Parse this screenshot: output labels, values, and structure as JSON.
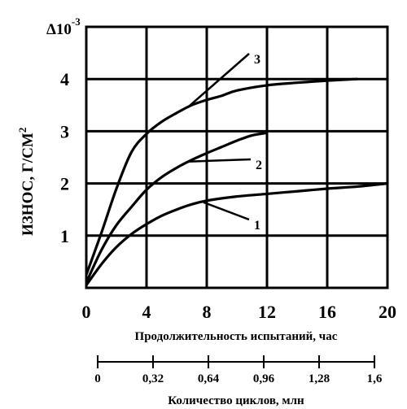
{
  "chart_data": {
    "type": "line",
    "xlabel": "Продолжительность испытаний, час",
    "ylabel": "ИЗНОС, Г/СМ",
    "ylabel_superscript": "2",
    "y_multiplier_text": "Δ10",
    "y_multiplier_exp": "-3",
    "xlim": [
      0,
      20
    ],
    "ylim": [
      0,
      5
    ],
    "x_ticks": [
      "0",
      "4",
      "8",
      "12",
      "16",
      "20"
    ],
    "y_ticks": [
      "1",
      "2",
      "3",
      "4"
    ],
    "grid": true,
    "secondary_axis": {
      "label": "Количество циклов, млн",
      "ticks": [
        "0",
        "0,32",
        "0,64",
        "0,96",
        "1,28",
        "1,6"
      ]
    },
    "series": [
      {
        "name": "1",
        "x": [
          0,
          1,
          2,
          3,
          4,
          5,
          6,
          7,
          8,
          10,
          12,
          14,
          16,
          18,
          20
        ],
        "y": [
          0.05,
          0.45,
          0.78,
          1.03,
          1.22,
          1.38,
          1.5,
          1.6,
          1.67,
          1.75,
          1.8,
          1.85,
          1.9,
          1.94,
          2.0
        ]
      },
      {
        "name": "2",
        "x": [
          0,
          1,
          2,
          3,
          4,
          5,
          6,
          7,
          8,
          9,
          10,
          11,
          12
        ],
        "y": [
          0.1,
          0.72,
          1.2,
          1.55,
          1.88,
          2.12,
          2.3,
          2.45,
          2.58,
          2.7,
          2.82,
          2.92,
          2.97
        ]
      },
      {
        "name": "3",
        "x": [
          0,
          1,
          2,
          3,
          4,
          5,
          6,
          7,
          8,
          9,
          10,
          12,
          14,
          16,
          18
        ],
        "y": [
          0.25,
          1.05,
          1.9,
          2.6,
          2.95,
          3.18,
          3.35,
          3.5,
          3.6,
          3.68,
          3.78,
          3.88,
          3.93,
          3.97,
          4.0
        ]
      }
    ]
  }
}
